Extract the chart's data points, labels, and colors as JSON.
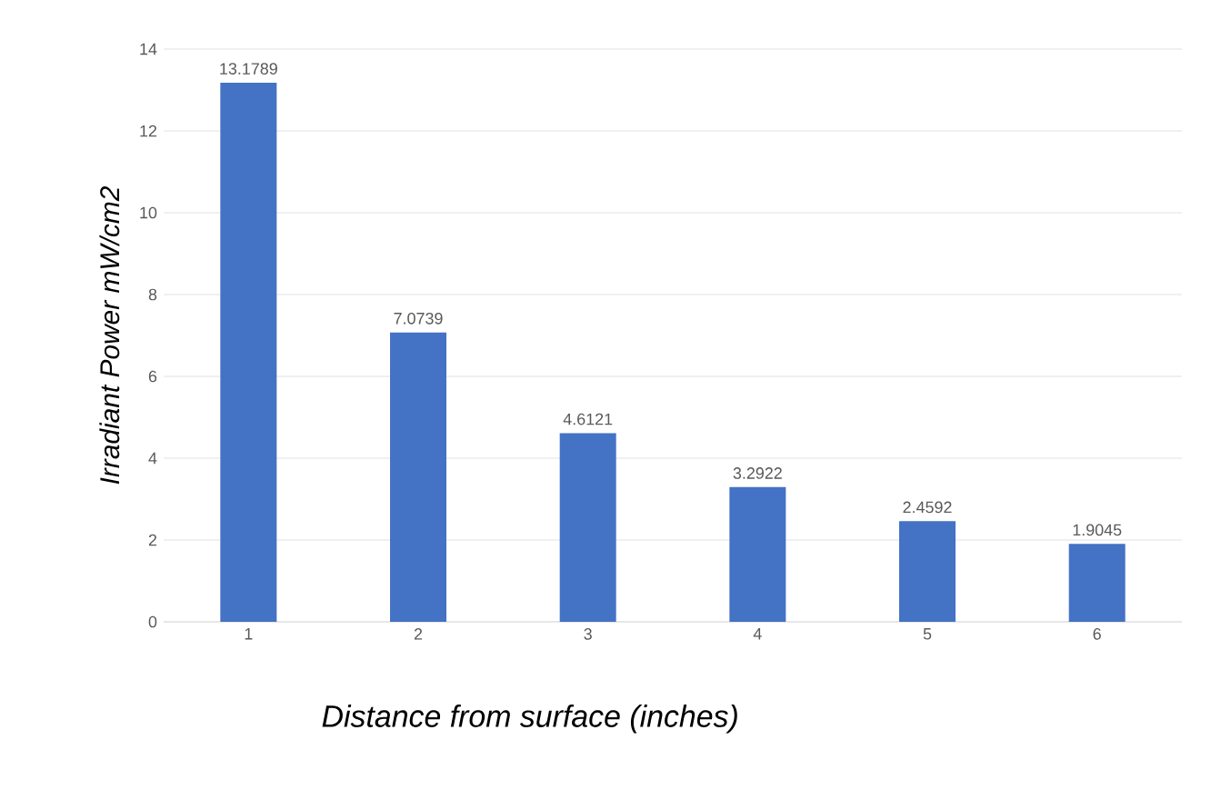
{
  "chart_data": {
    "type": "bar",
    "xlabel": "Distance from surface (inches)",
    "ylabel": "Irradiant Power mW/cm2",
    "categories": [
      "1",
      "2",
      "3",
      "4",
      "5",
      "6"
    ],
    "values": [
      13.1789,
      7.0739,
      4.6121,
      3.2922,
      2.4592,
      1.9045
    ],
    "color": "#4472c4",
    "ylim": [
      0,
      14
    ],
    "yticks": [
      0,
      2,
      4,
      6,
      8,
      10,
      12,
      14
    ],
    "grid": "y",
    "data_labels": true
  }
}
